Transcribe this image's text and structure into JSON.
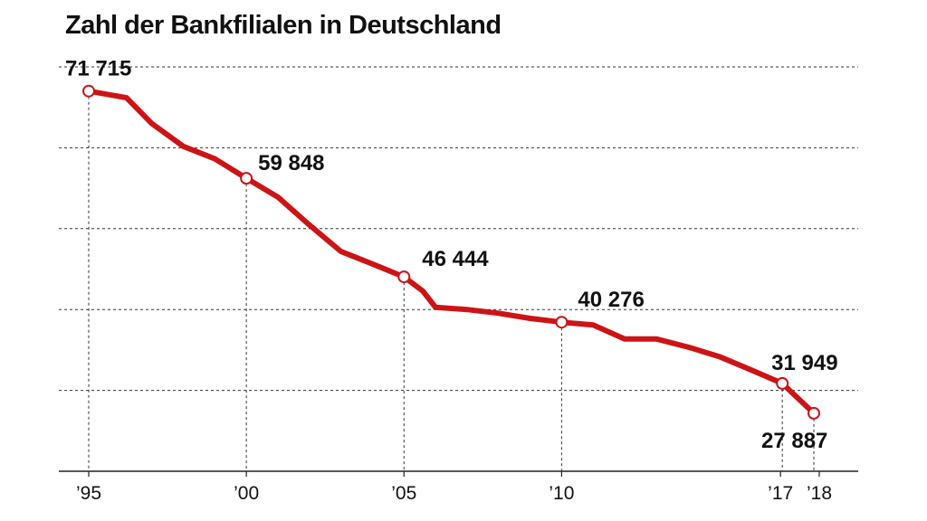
{
  "chart_data": {
    "type": "line",
    "title": "Zahl der Bankfilialen in Deutschland",
    "xlabel": "",
    "ylabel": "",
    "x_ticks": [
      "’95",
      "’00",
      "’05",
      "’10",
      "’17",
      "’18"
    ],
    "xlim": [
      1995,
      2018.6
    ],
    "ylim": [
      20000,
      75000
    ],
    "grid": "horizontal dashed",
    "series": [
      {
        "color": "#cc1417",
        "x": [
          1995,
          1996.2,
          1997,
          1998,
          1999,
          2000,
          2001,
          2002,
          2003,
          2004,
          2005,
          2005.6,
          2006,
          2007,
          2008,
          2009,
          2010,
          2011,
          2012,
          2013,
          2014,
          2015,
          2016,
          2017,
          2018
        ],
        "y": [
          71715,
          70800,
          67300,
          64200,
          62500,
          59848,
          57300,
          53500,
          49900,
          48200,
          46444,
          44500,
          42300,
          42000,
          41500,
          40800,
          40276,
          39900,
          38000,
          38000,
          36900,
          35600,
          33800,
          31949,
          27887
        ]
      }
    ],
    "data_labels": [
      {
        "x": 1995,
        "text": "71 715"
      },
      {
        "x": 2000,
        "text": "59 848"
      },
      {
        "x": 2005,
        "text": "46 444"
      },
      {
        "x": 2010,
        "text": "40 276"
      },
      {
        "x": 2017,
        "text": "31 949"
      },
      {
        "x": 2018,
        "text": "27 887"
      }
    ]
  }
}
